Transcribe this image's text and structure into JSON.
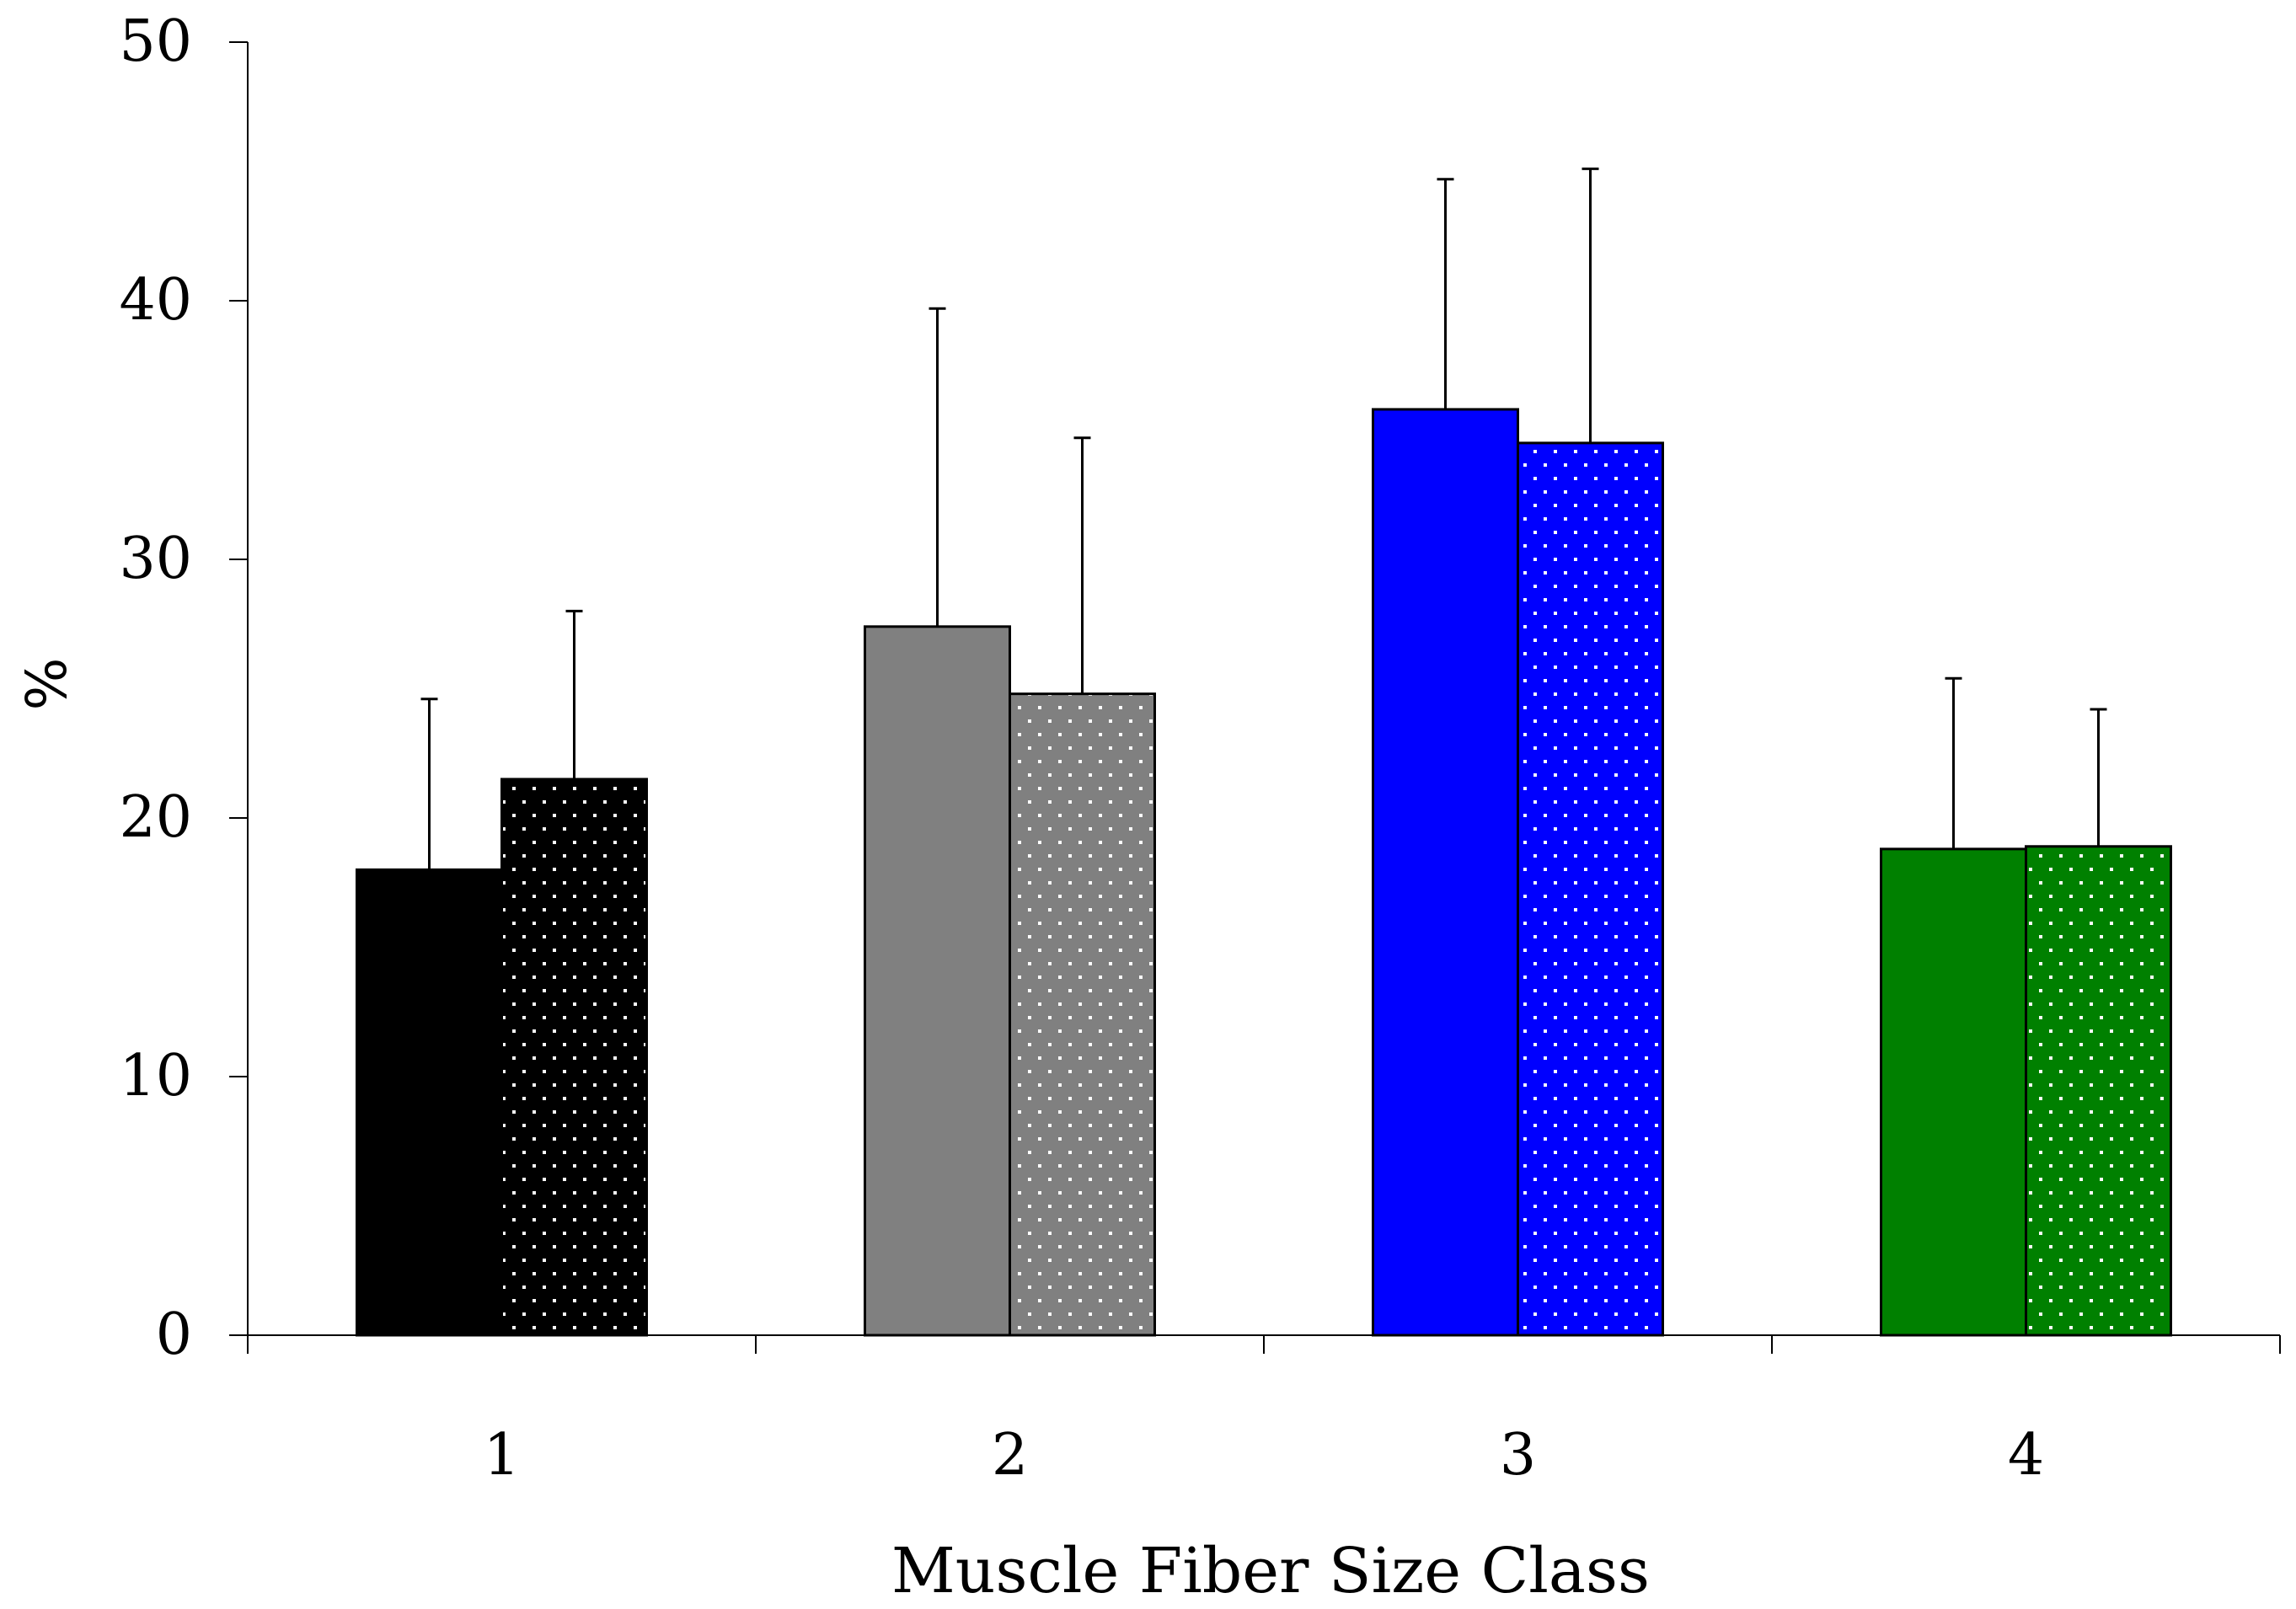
{
  "chart_data": {
    "type": "bar",
    "title": "",
    "xlabel": "Muscle Fiber Size Class",
    "ylabel": "%",
    "ylim": [
      0,
      50
    ],
    "yticks": [
      0,
      10,
      20,
      30,
      40,
      50
    ],
    "categories": [
      "1",
      "2",
      "3",
      "4"
    ],
    "grid": false,
    "legend": "none",
    "series": [
      {
        "name": "solid",
        "pattern": "solid",
        "values": [
          18.0,
          27.4,
          35.8,
          18.8
        ],
        "error_upper": [
          6.6,
          12.3,
          8.9,
          6.6
        ],
        "colors": [
          "#000000",
          "#808080",
          "#0000ff",
          "#008000"
        ]
      },
      {
        "name": "dotted",
        "pattern": "dots",
        "values": [
          21.5,
          24.8,
          34.5,
          18.9
        ],
        "error_upper": [
          6.5,
          9.9,
          10.6,
          5.3
        ],
        "colors": [
          "#000000",
          "#808080",
          "#0000ff",
          "#008000"
        ]
      }
    ]
  }
}
